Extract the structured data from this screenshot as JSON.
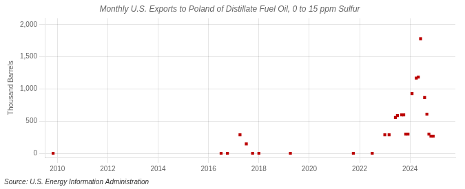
{
  "chart_data": {
    "type": "scatter",
    "title": "Monthly U.S. Exports to Poland of Distillate Fuel Oil, 0 to 15 ppm Sulfur",
    "ylabel": "Thousand Barrels",
    "source": "Source: U.S. Energy Information Administration",
    "color": "#bb0000",
    "marker": "square",
    "grid": true,
    "xlim": [
      2009.5,
      2025.8
    ],
    "ylim": [
      -60,
      2100
    ],
    "xticks": [
      2010,
      2012,
      2014,
      2016,
      2018,
      2020,
      2022,
      2024
    ],
    "yticks": [
      0,
      500,
      {
        "value": 1000,
        "label": "1,000"
      },
      {
        "value": 1500,
        "label": "1,500"
      },
      {
        "value": 2000,
        "label": "2,000"
      }
    ],
    "x": [
      2009.83,
      2016.5,
      2016.75,
      2017.25,
      2017.5,
      2017.75,
      2018.0,
      2019.25,
      2021.75,
      2022.5,
      2023.0,
      2023.17,
      2023.42,
      2023.5,
      2023.67,
      2023.75,
      2023.83,
      2023.92,
      2024.08,
      2024.25,
      2024.33,
      2024.42,
      2024.58,
      2024.67,
      2024.75,
      2024.83,
      2024.92
    ],
    "values": [
      4,
      4,
      4,
      290,
      150,
      4,
      4,
      4,
      4,
      4,
      290,
      290,
      560,
      590,
      600,
      600,
      300,
      300,
      930,
      1170,
      1185,
      1780,
      870,
      610,
      300,
      270,
      270
    ]
  }
}
